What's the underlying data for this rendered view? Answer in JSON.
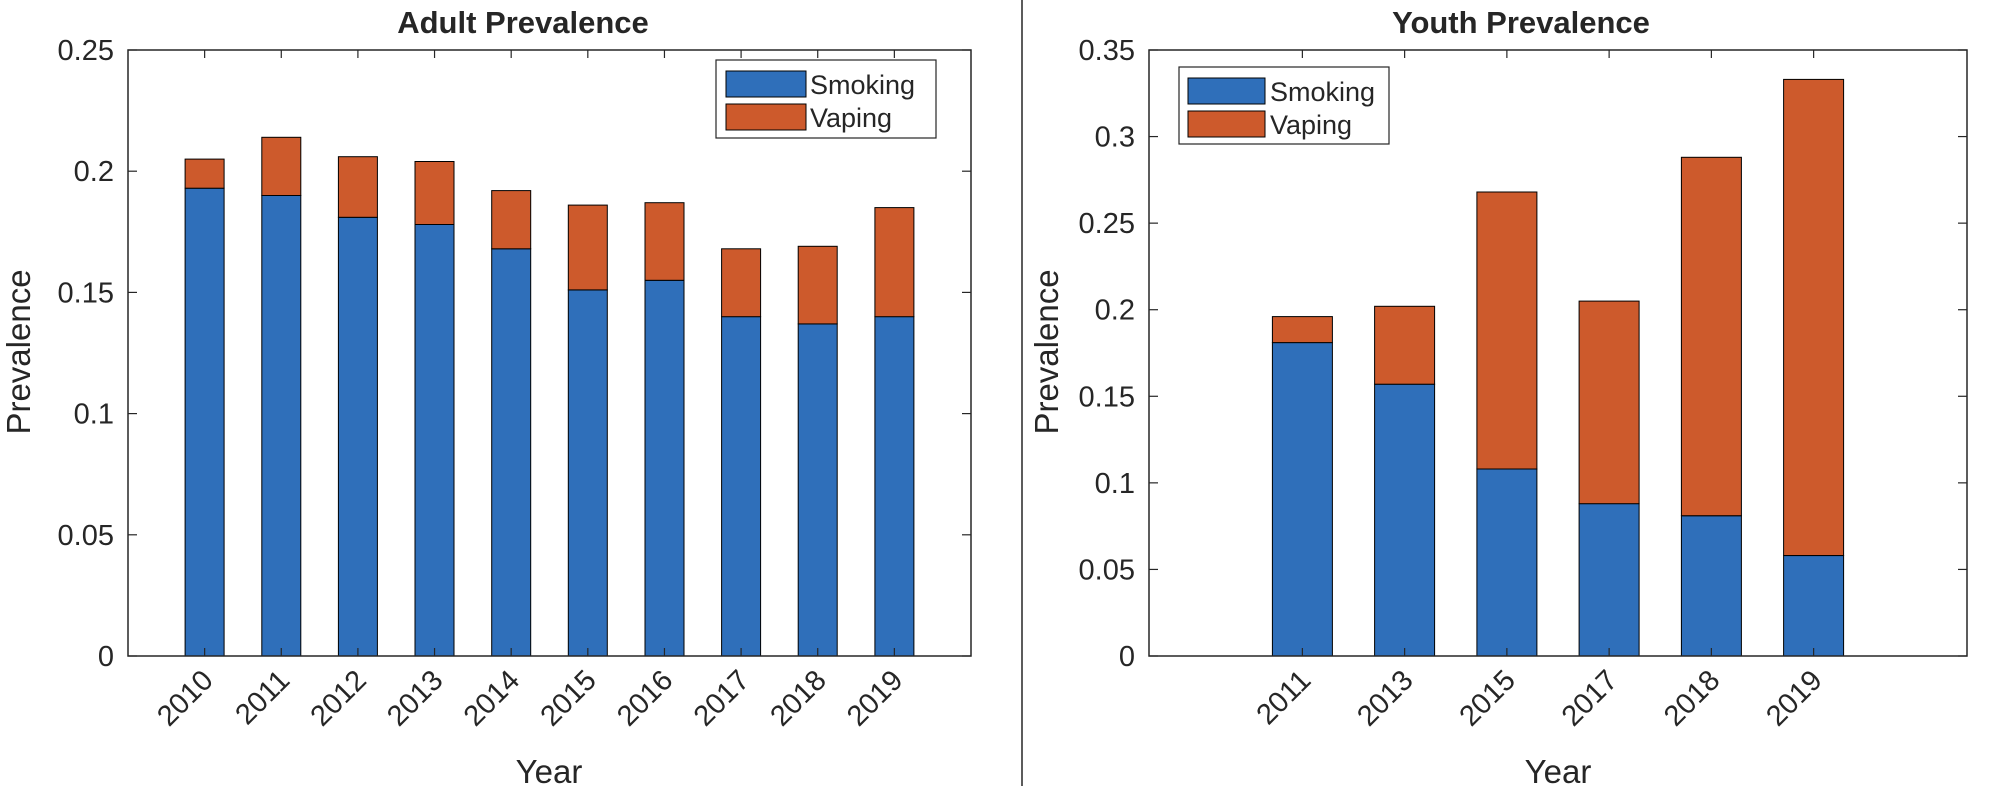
{
  "colors": {
    "smoking": "#2f6fba",
    "vaping": "#cd5a2c",
    "axis": "#262626"
  },
  "chart_data": [
    {
      "type": "bar",
      "stacked": true,
      "title": "Adult Prevalence",
      "xlabel": "Year",
      "ylabel": "Prevalence",
      "ylim": [
        0,
        0.25
      ],
      "yticks": [
        "0",
        "0.05",
        "0.1",
        "0.15",
        "0.2",
        "0.25"
      ],
      "categories": [
        "2010",
        "2011",
        "2012",
        "2013",
        "2014",
        "2015",
        "2016",
        "2017",
        "2018",
        "2019"
      ],
      "series": [
        {
          "name": "Smoking",
          "values": [
            0.193,
            0.19,
            0.181,
            0.178,
            0.168,
            0.151,
            0.155,
            0.14,
            0.137,
            0.14
          ]
        },
        {
          "name": "Vaping",
          "values": [
            0.012,
            0.024,
            0.025,
            0.026,
            0.024,
            0.035,
            0.032,
            0.028,
            0.032,
            0.045
          ]
        }
      ],
      "legend": "top-right",
      "grid": false
    },
    {
      "type": "bar",
      "stacked": true,
      "title": "Youth Prevalence",
      "xlabel": "Year",
      "ylabel": "Prevalence",
      "ylim": [
        0,
        0.35
      ],
      "yticks": [
        "0",
        "0.05",
        "0.1",
        "0.15",
        "0.2",
        "0.25",
        "0.3",
        "0.35"
      ],
      "categories": [
        "2011",
        "2013",
        "2015",
        "2017",
        "2018",
        "2019"
      ],
      "series": [
        {
          "name": "Smoking",
          "values": [
            0.181,
            0.157,
            0.108,
            0.088,
            0.081,
            0.058
          ]
        },
        {
          "name": "Vaping",
          "values": [
            0.015,
            0.045,
            0.16,
            0.117,
            0.207,
            0.275
          ]
        }
      ],
      "legend": "top-left",
      "grid": false
    }
  ]
}
